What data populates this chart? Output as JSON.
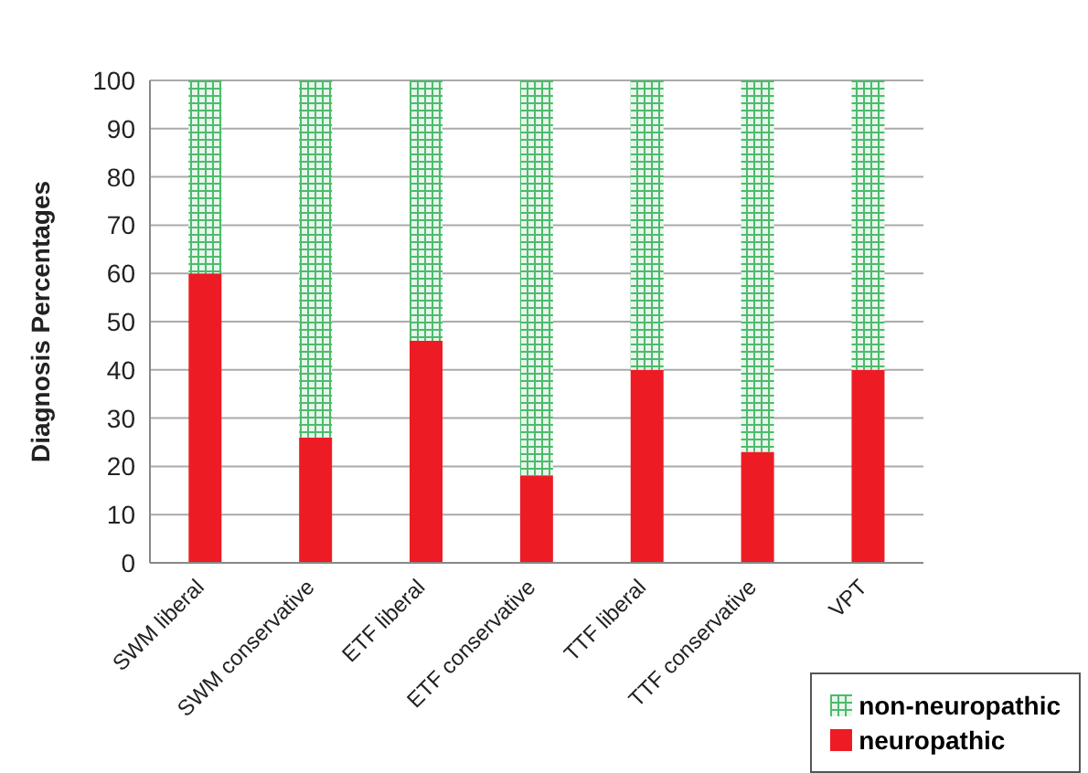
{
  "chart_data": {
    "type": "bar",
    "ylabel": "Diagnosis Percentages",
    "categories": [
      "SWM liberal",
      "SWM conservative",
      "ETF liberal",
      "ETF conservative",
      "TTF liberal",
      "TTF conservative",
      "VPT"
    ],
    "stacked": true,
    "series": [
      {
        "name": "neuropathic",
        "color": "#ed1c24",
        "values": [
          60,
          26,
          46,
          18,
          40,
          23,
          40
        ]
      },
      {
        "name": "non-neuropathic",
        "color": "#4cbb6c",
        "values": [
          40,
          74,
          54,
          82,
          60,
          77,
          60
        ]
      }
    ],
    "ylim": [
      0,
      100
    ],
    "yticks": [
      0,
      10,
      20,
      30,
      40,
      50,
      60,
      70,
      80,
      90,
      100
    ],
    "grid": "y",
    "legend": "bottom right"
  }
}
